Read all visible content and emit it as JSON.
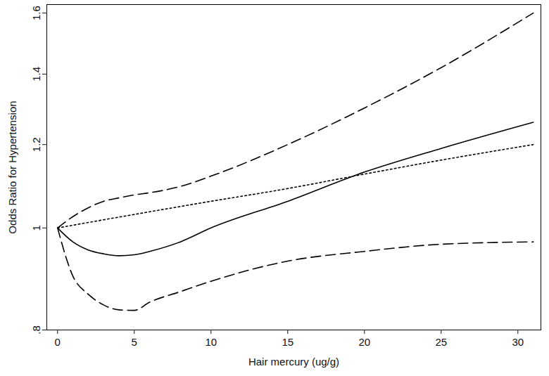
{
  "chart_data": {
    "type": "line",
    "x_label": "Hair mercury (ug/g)",
    "y_label": "Odds Ratio for Hypertension",
    "log": "y",
    "grid": false,
    "x": [
      0,
      1,
      2,
      3,
      4,
      5,
      6,
      8,
      10,
      15,
      20,
      25,
      31
    ],
    "series": [
      {
        "color": "#000000",
        "line_style": "solid",
        "values": [
          1,
          0.97,
          0.953,
          0.945,
          0.941,
          0.943,
          0.95,
          0.97,
          1.0,
          1.06,
          1.13,
          1.19,
          1.26
        ]
      },
      {
        "color": "#000000",
        "line_style": "dashed",
        "values": [
          1,
          1.025,
          1.045,
          1.06,
          1.068,
          1.075,
          1.08,
          1.095,
          1.12,
          1.2,
          1.3,
          1.42,
          1.6
        ]
      },
      {
        "color": "#000000",
        "line_style": "dashed",
        "values": [
          1,
          0.9,
          0.865,
          0.845,
          0.836,
          0.835,
          0.85,
          0.87,
          0.89,
          0.93,
          0.95,
          0.965,
          0.97
        ]
      },
      {
        "color": "#000000",
        "line_style": "dotted",
        "values": [
          1,
          1.006,
          1.012,
          1.018,
          1.024,
          1.03,
          1.036,
          1.048,
          1.06,
          1.09,
          1.125,
          1.16,
          1.2
        ]
      }
    ],
    "xlim": [
      -0.7,
      31.5
    ],
    "xticks": [
      0,
      5,
      10,
      15,
      20,
      25,
      30
    ],
    "ylim": [
      0.8,
      1.63
    ],
    "yticks": [
      {
        "value": 0.8,
        "label": ".8"
      },
      1,
      1.2,
      1.4,
      1.6
    ]
  }
}
